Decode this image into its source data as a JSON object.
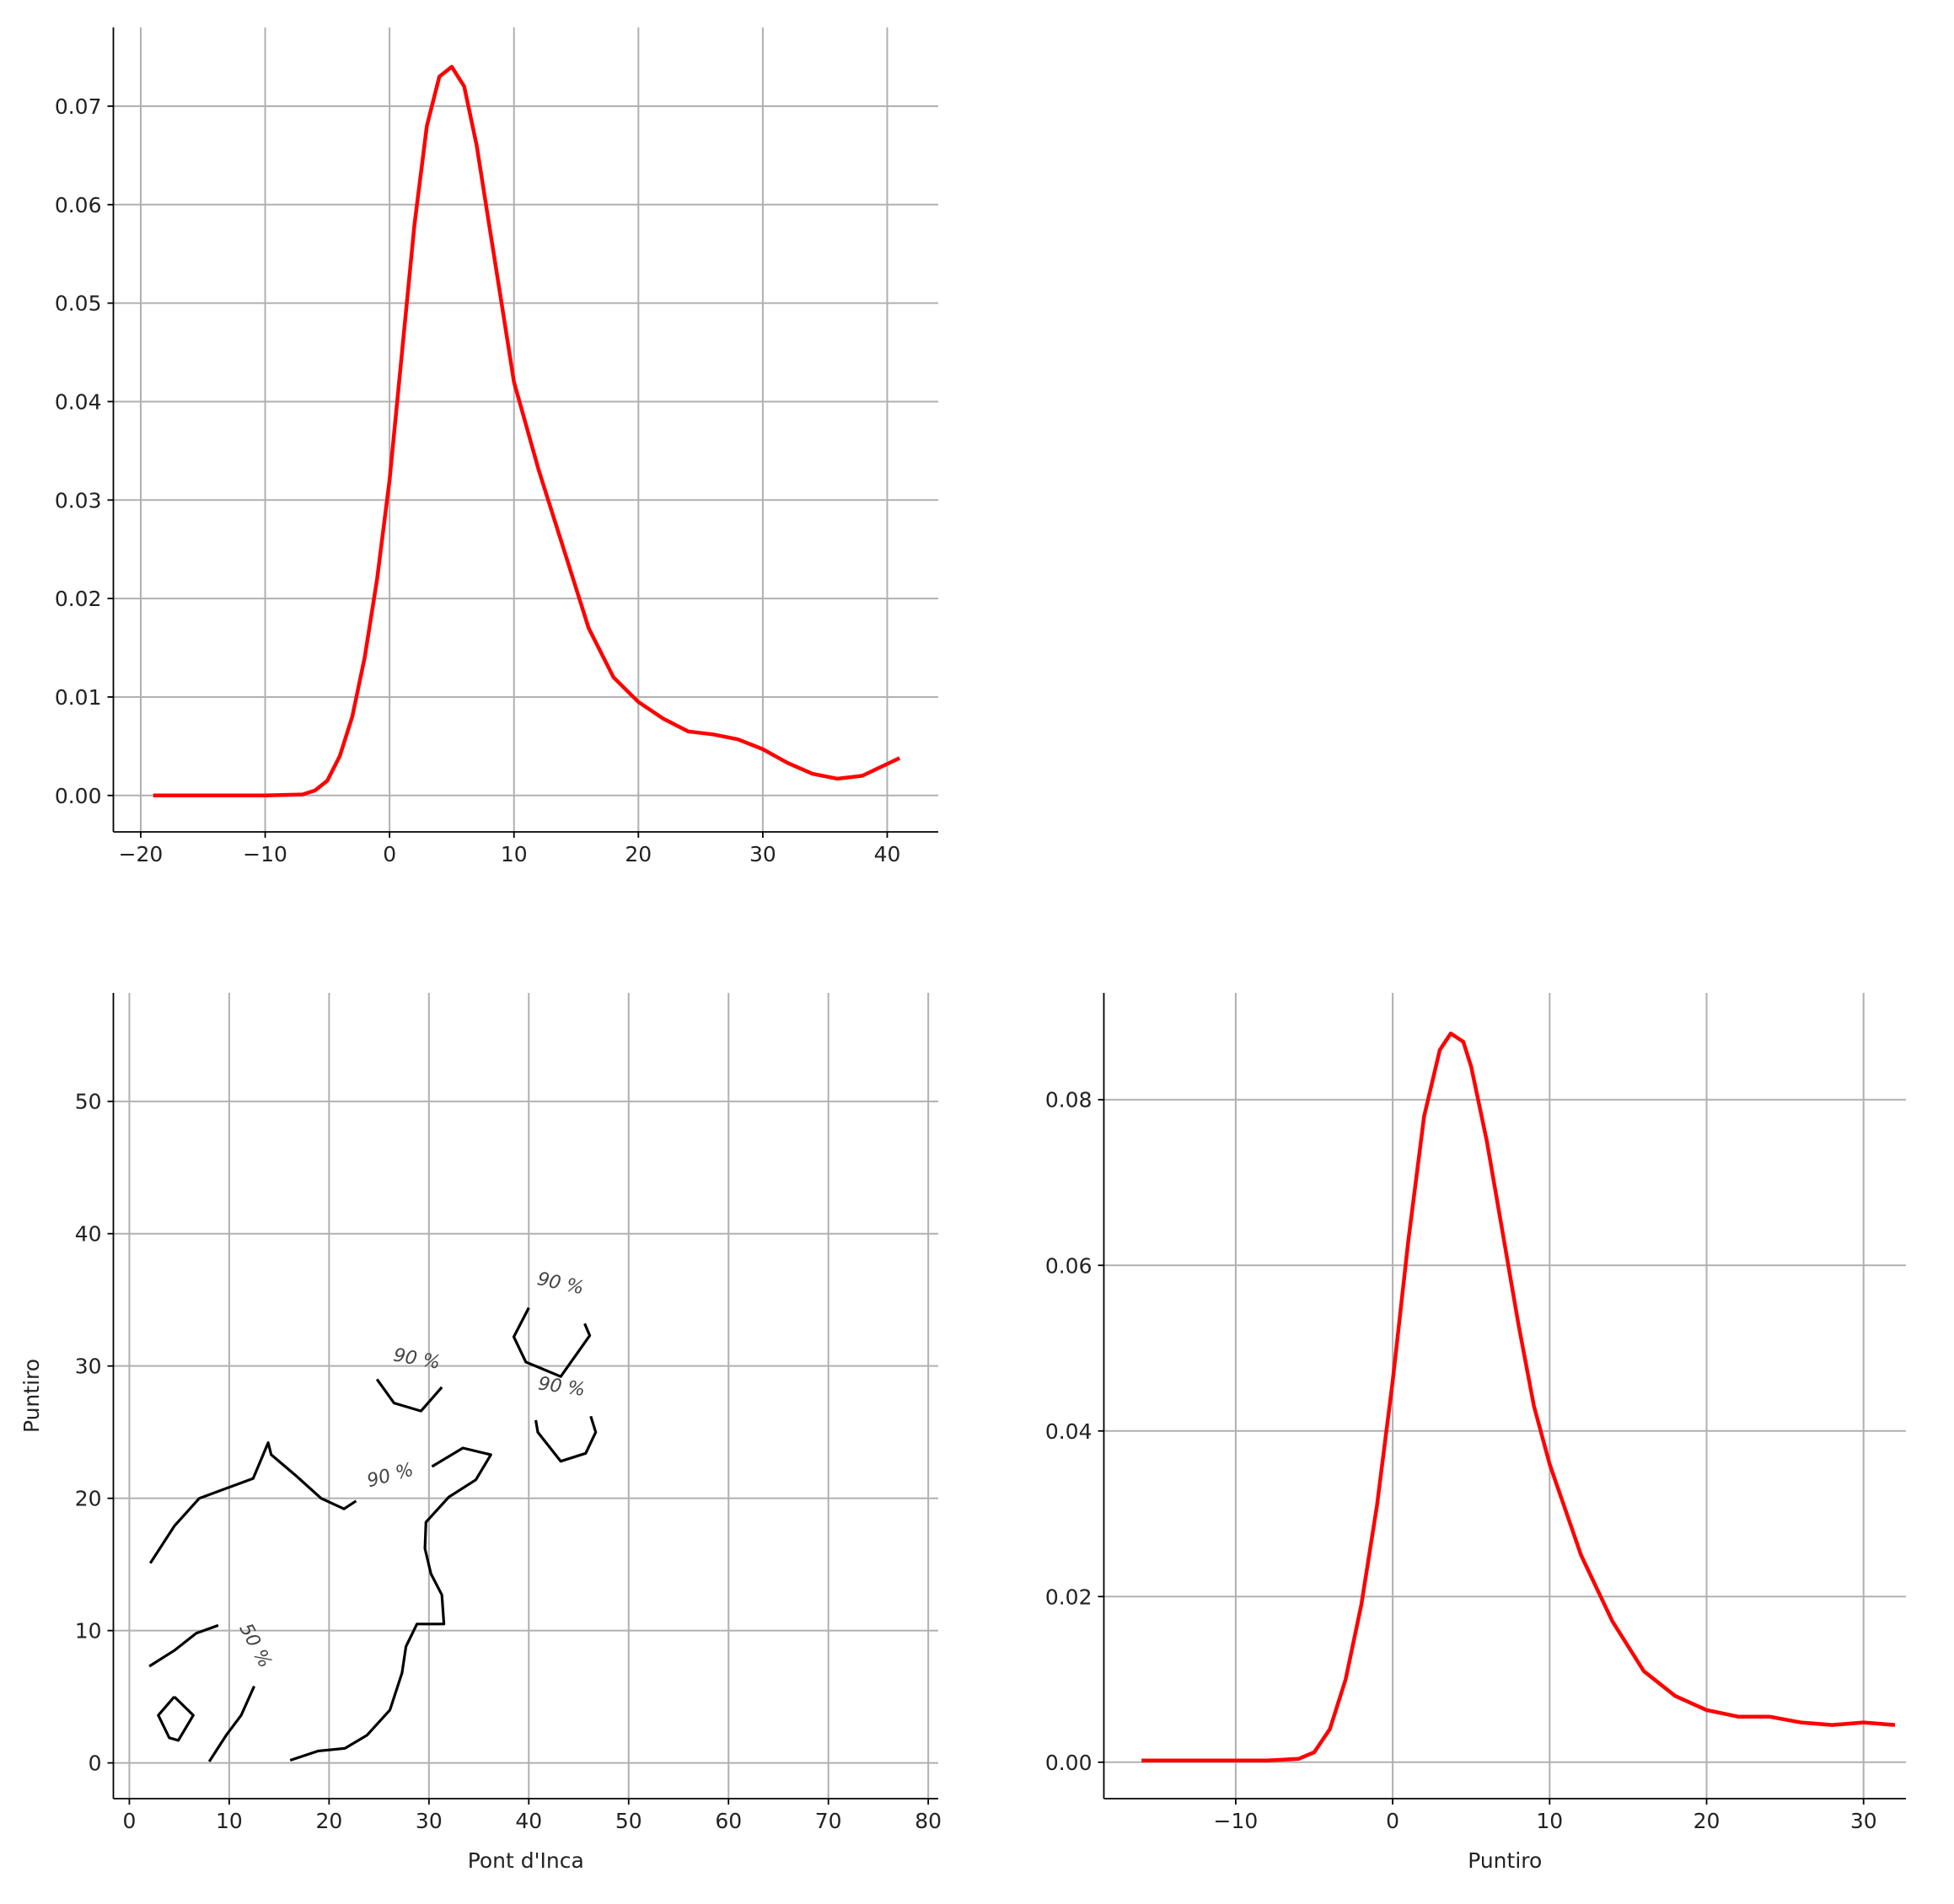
{
  "chart_data": [
    {
      "type": "line",
      "color": "#ff0000",
      "grid": true,
      "x": [
        -19,
        -10,
        -7,
        -6,
        -5,
        -4,
        -3,
        -2,
        -1,
        0,
        1,
        2,
        3,
        4,
        5,
        6,
        7,
        8,
        9,
        10,
        12,
        14,
        16,
        18,
        20,
        22,
        24,
        26,
        28,
        30,
        32,
        34,
        36,
        38,
        40,
        41
      ],
      "y": [
        0,
        0,
        0.0001,
        0.0005,
        0.0015,
        0.004,
        0.008,
        0.014,
        0.022,
        0.032,
        0.045,
        0.058,
        0.068,
        0.073,
        0.074,
        0.072,
        0.066,
        0.058,
        0.05,
        0.042,
        0.033,
        0.025,
        0.017,
        0.012,
        0.0095,
        0.0078,
        0.0065,
        0.0062,
        0.0057,
        0.0047,
        0.0033,
        0.0022,
        0.0017,
        0.002,
        0.0032,
        0.0038
      ],
      "xlim": [
        -22.2,
        44.1
      ],
      "ylim": [
        -0.0037,
        0.078
      ],
      "xticks": [
        {
          "value": -20,
          "label": "−20"
        },
        {
          "value": -10,
          "label": "−10"
        },
        0,
        10,
        20,
        30,
        40
      ],
      "yticks": [
        {
          "value": 0,
          "label": "0.00"
        },
        0.01,
        0.02,
        0.03,
        0.04,
        0.05,
        0.06,
        0.07
      ]
    },
    {
      "type": "contour",
      "color": "#000000",
      "grid": true,
      "x_label": "Pont d'Inca",
      "y_label": "Puntiro",
      "lines": [
        {
          "x": [
            2.1,
            4.5,
            7.0,
            12.4,
            13.9,
            14.2,
            16.7,
            19.2,
            21.5,
            22.7
          ],
          "y": [
            15.1,
            17.9,
            20.0,
            21.5,
            24.2,
            23.3,
            21.7,
            20.0,
            19.2,
            19.8
          ]
        },
        {
          "x": [
            30.3,
            33.4,
            36.2,
            34.7,
            32.0,
            29.7,
            29.6,
            30.2,
            31.3,
            31.5,
            28.8,
            27.7,
            27.3,
            26.1,
            23.8,
            21.6,
            18.9,
            16.1
          ],
          "y": [
            22.4,
            23.8,
            23.3,
            21.4,
            20.1,
            18.2,
            16.2,
            14.3,
            12.7,
            10.5,
            10.5,
            8.8,
            6.8,
            4.0,
            2.1,
            1.1,
            0.9,
            0.2
          ]
        },
        {
          "x": [
            24.8,
            26.5,
            29.2,
            31.3
          ],
          "y": [
            29.0,
            27.2,
            26.6,
            28.4
          ]
        },
        {
          "x": [
            40.0,
            38.5,
            39.7,
            43.2,
            46.1,
            45.6
          ],
          "y": [
            34.4,
            32.2,
            30.3,
            29.2,
            32.3,
            33.2
          ]
        },
        {
          "x": [
            40.7,
            40.9,
            43.2,
            45.7,
            46.7,
            46.2
          ],
          "y": [
            25.9,
            25.0,
            22.8,
            23.4,
            25.0,
            26.2
          ]
        },
        {
          "x": [
            2.0,
            4.5,
            6.7,
            8.9
          ],
          "y": [
            7.3,
            8.5,
            9.8,
            10.4
          ]
        },
        {
          "x": [
            12.5,
            11.2,
            9.7,
            8.0
          ],
          "y": [
            5.8,
            3.6,
            2.1,
            0.1
          ]
        },
        {
          "x": [
            4.5,
            6.4,
            4.9,
            4.0,
            2.9,
            4.5
          ],
          "y": [
            5.0,
            3.6,
            1.7,
            1.9,
            3.6,
            5.0
          ]
        }
      ],
      "contour_labels": [
        {
          "text": "90 %",
          "x": 28.8,
          "y": 30.6
        },
        {
          "text": "90 %",
          "x": 43.2,
          "y": 36.3
        },
        {
          "text": "90 %",
          "x": 43.3,
          "y": 28.5
        },
        {
          "text": "90 %",
          "x": 26.1,
          "y": 21.8
        },
        {
          "text": "50 %",
          "x": 12.7,
          "y": 8.9
        }
      ],
      "xlim": [
        -1.6,
        81
      ],
      "ylim": [
        -2.7,
        58.2
      ],
      "xticks": [
        0,
        10,
        20,
        30,
        40,
        50,
        60,
        70,
        80
      ],
      "yticks": [
        0,
        10,
        20,
        30,
        40,
        50
      ]
    },
    {
      "type": "line",
      "color": "#ff0000",
      "grid": true,
      "x_label": "Puntiro",
      "x": [
        -16,
        -8,
        -6,
        -5,
        -4,
        -3,
        -2,
        -1,
        0,
        1,
        2,
        3,
        3.7,
        4.5,
        5,
        6,
        7,
        8,
        9,
        10,
        12,
        14,
        16,
        18,
        20,
        22,
        24,
        26,
        28,
        30,
        32
      ],
      "y": [
        0.0002,
        0.0002,
        0.0004,
        0.0012,
        0.004,
        0.01,
        0.019,
        0.031,
        0.046,
        0.063,
        0.078,
        0.086,
        0.088,
        0.087,
        0.084,
        0.075,
        0.064,
        0.053,
        0.043,
        0.036,
        0.025,
        0.017,
        0.011,
        0.008,
        0.0063,
        0.0055,
        0.0055,
        0.0048,
        0.0045,
        0.0048,
        0.0045
      ],
      "xlim": [
        -18.4,
        32.7
      ],
      "ylim": [
        -0.0044,
        0.0929
      ],
      "xticks": [
        {
          "value": -10,
          "label": "−10"
        },
        0,
        10,
        20,
        30
      ],
      "yticks": [
        {
          "value": 0,
          "label": "0.00"
        },
        0.02,
        0.04,
        0.06,
        0.08
      ]
    }
  ]
}
